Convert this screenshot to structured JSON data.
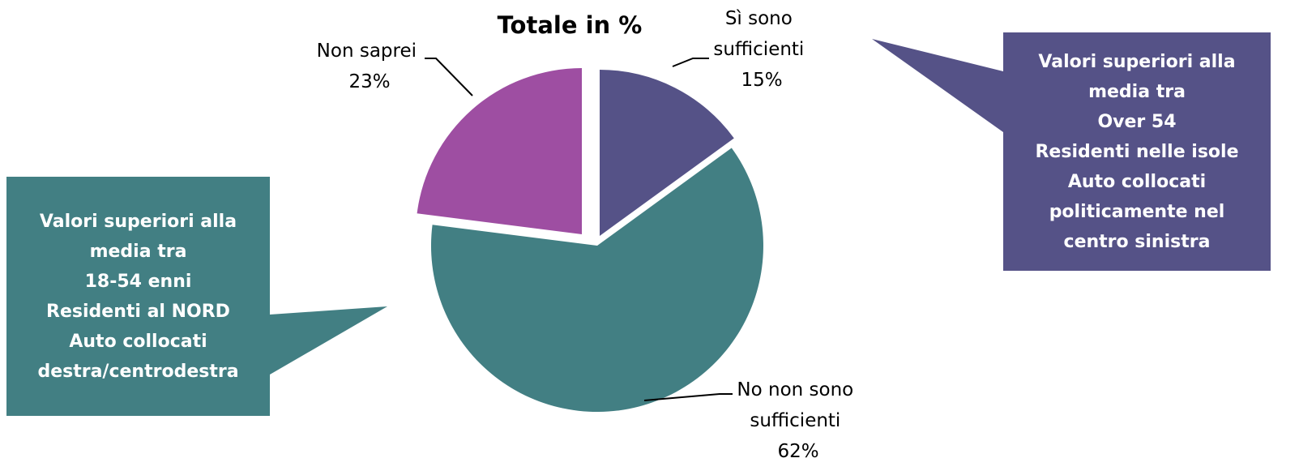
{
  "chart_data": {
    "type": "pie",
    "title": "Totale in %",
    "slices": [
      {
        "name": "Sì sono sufficienti",
        "label_lines": [
          "Sì sono",
          "sufficienti"
        ],
        "value": 15,
        "value_label": "15%",
        "color": "#555287"
      },
      {
        "name": "No non sono sufficienti",
        "label_lines": [
          "No non sono",
          "sufficienti"
        ],
        "value": 62,
        "value_label": "62%",
        "color": "#427f83"
      },
      {
        "name": "Non saprei",
        "label_lines": [
          "Non saprei"
        ],
        "value": 23,
        "value_label": "23%",
        "color": "#9e4ea2"
      }
    ]
  },
  "callouts": {
    "left": {
      "color": "#427f83",
      "lines": [
        "Valori superiori alla",
        "media tra",
        "18-54 enni",
        "Residenti al NORD",
        "Auto collocati",
        "destra/centrodestra"
      ]
    },
    "right": {
      "color": "#555287",
      "lines": [
        "Valori superiori alla",
        "media tra",
        "Over 54",
        "Residenti nelle isole",
        "Auto collocati",
        "politicamente nel",
        "centro sinistra"
      ]
    }
  }
}
